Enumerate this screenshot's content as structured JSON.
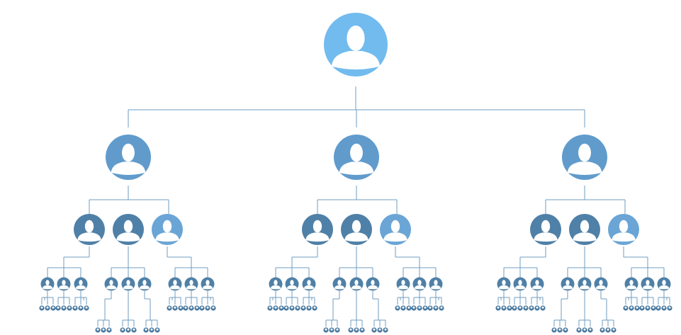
{
  "diagram": {
    "type": "org-chart",
    "icon": "person-silhouette-icon",
    "colors": {
      "connector": "#6f9cc0",
      "level_0": "#72bbee",
      "level_1": "#609bcc",
      "level_2_dark": "#4f80a7",
      "level_2_light": "#6aa5d6",
      "level_3": "#4f80a7",
      "level_4": "#4a79a0",
      "silhouette": "#ffffff"
    },
    "hierarchy": {
      "root_count": 1,
      "level_1_count": 3,
      "level_2_per_parent": 3,
      "level_3_per_parent": 3,
      "level_4_per_parent": 3
    }
  }
}
